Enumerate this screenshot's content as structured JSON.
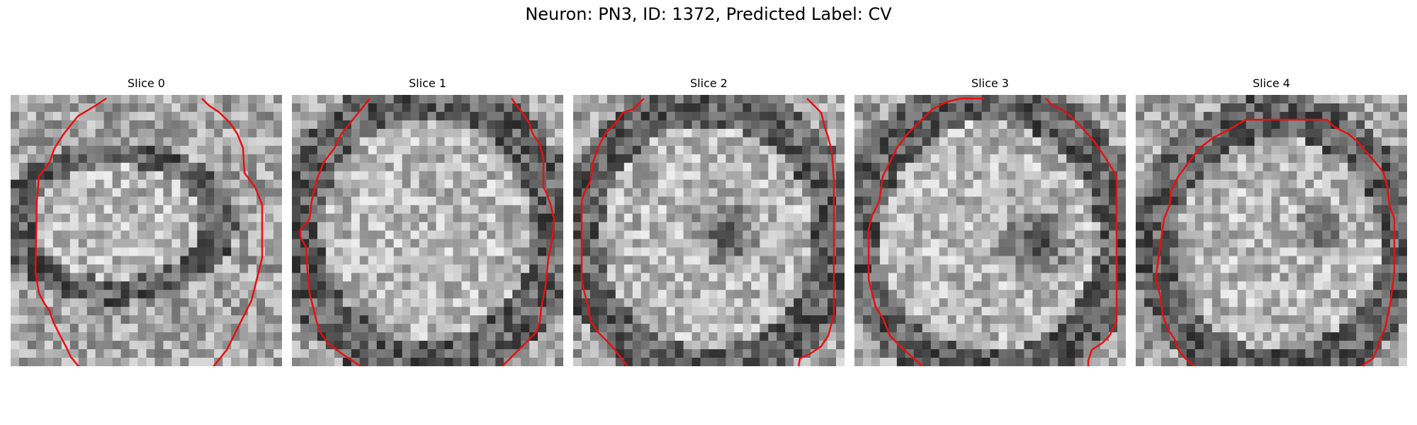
{
  "figure": {
    "suptitle": "Neuron: PN3, ID: 1372, Predicted Label: CV"
  },
  "panels": [
    {
      "title": "Slice 0"
    },
    {
      "title": "Slice 1"
    },
    {
      "title": "Slice 2"
    },
    {
      "title": "Slice 3"
    },
    {
      "title": "Slice 4"
    }
  ],
  "colors": {
    "contour": "#e81010",
    "background": "#ffffff"
  }
}
